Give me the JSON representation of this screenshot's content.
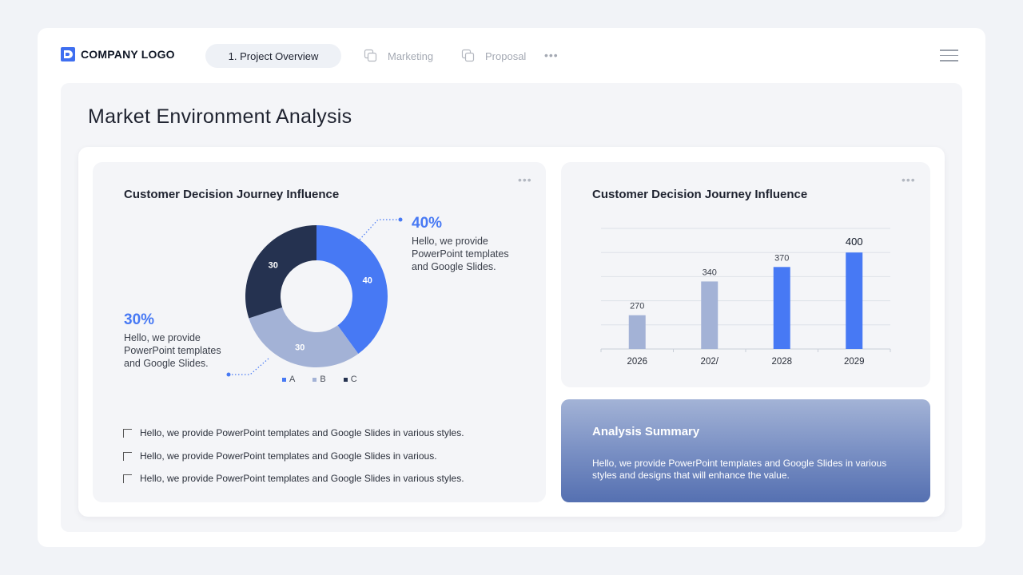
{
  "header": {
    "logo_text": "COMPANY LOGO",
    "tabs": [
      {
        "label": "1. Project Overview",
        "active": true
      },
      {
        "label": "Marketing",
        "active": false
      },
      {
        "label": "Proposal",
        "active": false
      }
    ],
    "more": "•••"
  },
  "page": {
    "title": "Market Environment Analysis"
  },
  "donut_card": {
    "title": "Customer Decision Journey Influence",
    "dots": "•••",
    "callout_right": {
      "pct": "40%",
      "text": "Hello, we provide PowerPoint templates and Google Slides."
    },
    "callout_left": {
      "pct": "30%",
      "text": "Hello, we provide PowerPoint templates and Google Slides."
    },
    "checklist": [
      "Hello, we provide PowerPoint templates and Google Slides in various styles.",
      "Hello, we provide PowerPoint templates and Google Slides in various.",
      "Hello, we provide PowerPoint templates and Google Slides in various styles."
    ]
  },
  "bar_card": {
    "title": "Customer Decision Journey Influence",
    "dots": "•••"
  },
  "summary": {
    "title": "Analysis Summary",
    "text": "Hello, we provide PowerPoint templates and Google Slides in various styles and designs that will enhance the value."
  },
  "colors": {
    "accent": "#4779f4",
    "light": "#a3b2d6",
    "dark": "#253250"
  },
  "chart_data": [
    {
      "type": "pie",
      "title": "Customer Decision Journey Influence",
      "categories": [
        "A",
        "B",
        "C"
      ],
      "values": [
        40,
        30,
        30
      ],
      "colors": [
        "#4779f4",
        "#a3b2d6",
        "#253250"
      ],
      "donut": true,
      "legend": "bottom"
    },
    {
      "type": "bar",
      "title": "Customer Decision Journey Influence",
      "categories": [
        "2026",
        "2027",
        "2028",
        "2029"
      ],
      "category_labels": [
        "2026",
        "202/",
        "2028",
        "2029"
      ],
      "values": [
        270,
        340,
        370,
        400
      ],
      "value_labels": [
        "270",
        "340",
        "370",
        "400"
      ],
      "colors": [
        "#a3b2d6",
        "#a3b2d6",
        "#4779f4",
        "#4779f4"
      ],
      "ylim": [
        200,
        450
      ],
      "grid": true
    }
  ]
}
